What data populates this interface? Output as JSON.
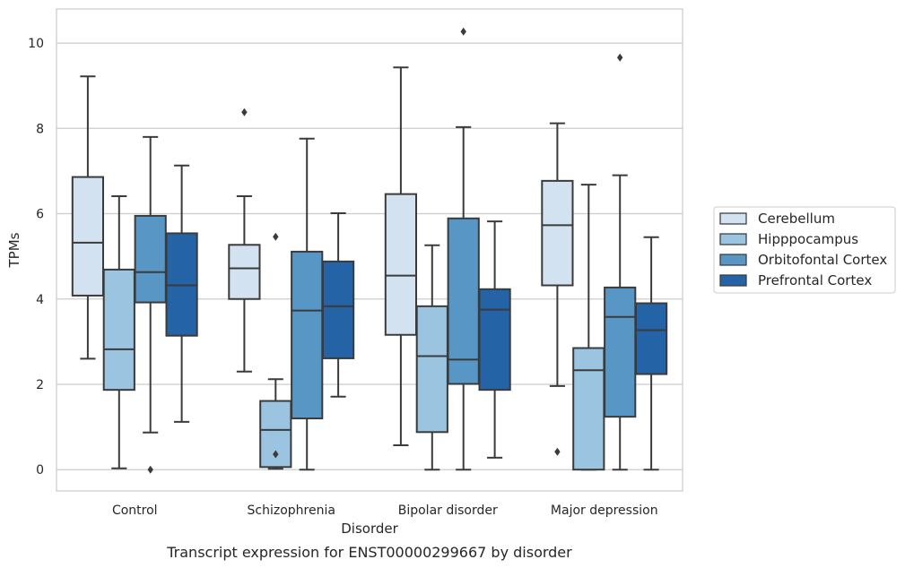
{
  "chart_data": {
    "type": "box",
    "caption": "Transcript expression for ENST00000299667 by disorder",
    "xlabel": "Disorder",
    "ylabel": "TPMs",
    "ylim": [
      -0.5,
      10.8
    ],
    "yticks": [
      0,
      2,
      4,
      6,
      8,
      10
    ],
    "grid": "horizontal",
    "legend_position": "right",
    "categories": [
      "Control",
      "Schizophrenia",
      "Bipolar disorder",
      "Major depression"
    ],
    "series": [
      {
        "name": "Cerebellum",
        "color": "#d2e2f1",
        "boxes": [
          {
            "whislo": 2.6,
            "q1": 4.08,
            "med": 5.32,
            "q3": 6.86,
            "whishi": 9.22,
            "fliers": []
          },
          {
            "whislo": 2.3,
            "q1": 4.0,
            "med": 4.72,
            "q3": 5.27,
            "whishi": 6.41,
            "fliers": [
              8.38
            ]
          },
          {
            "whislo": 0.57,
            "q1": 3.16,
            "med": 4.55,
            "q3": 6.46,
            "whishi": 9.43,
            "fliers": []
          },
          {
            "whislo": 1.96,
            "q1": 4.32,
            "med": 5.73,
            "q3": 6.77,
            "whishi": 8.12,
            "fliers": [
              0.42
            ]
          }
        ]
      },
      {
        "name": "Hipppocampus",
        "color": "#9ac4df",
        "boxes": [
          {
            "whislo": 0.03,
            "q1": 1.87,
            "med": 2.82,
            "q3": 4.69,
            "whishi": 6.41,
            "fliers": []
          },
          {
            "whislo": 0.02,
            "q1": 0.06,
            "med": 0.93,
            "q3": 1.61,
            "whishi": 2.12,
            "fliers": [
              0.36,
              5.46
            ]
          },
          {
            "whislo": 0.0,
            "q1": 0.88,
            "med": 2.66,
            "q3": 3.83,
            "whishi": 5.26,
            "fliers": []
          },
          {
            "whislo": 0.0,
            "q1": 0.0,
            "med": 2.33,
            "q3": 2.85,
            "whishi": 6.68,
            "fliers": []
          }
        ]
      },
      {
        "name": "Orbitofontal Cortex",
        "color": "#5796c5",
        "boxes": [
          {
            "whislo": 0.87,
            "q1": 3.92,
            "med": 4.63,
            "q3": 5.95,
            "whishi": 7.8,
            "fliers": [
              0.0
            ]
          },
          {
            "whislo": 0.0,
            "q1": 1.2,
            "med": 3.73,
            "q3": 5.11,
            "whishi": 7.76,
            "fliers": []
          },
          {
            "whislo": 0.0,
            "q1": 2.01,
            "med": 2.58,
            "q3": 5.89,
            "whishi": 8.03,
            "fliers": [
              10.27
            ]
          },
          {
            "whislo": 0.0,
            "q1": 1.24,
            "med": 3.58,
            "q3": 4.27,
            "whishi": 6.9,
            "fliers": [
              9.66
            ]
          }
        ]
      },
      {
        "name": "Prefrontal Cortex",
        "color": "#2463a6",
        "boxes": [
          {
            "whislo": 1.12,
            "q1": 3.14,
            "med": 4.32,
            "q3": 5.54,
            "whishi": 7.13,
            "fliers": []
          },
          {
            "whislo": 1.71,
            "q1": 2.61,
            "med": 3.83,
            "q3": 4.88,
            "whishi": 6.01,
            "fliers": []
          },
          {
            "whislo": 0.28,
            "q1": 1.87,
            "med": 3.75,
            "q3": 4.23,
            "whishi": 5.82,
            "fliers": []
          },
          {
            "whislo": 0.0,
            "q1": 2.24,
            "med": 3.27,
            "q3": 3.9,
            "whishi": 5.45,
            "fliers": []
          }
        ]
      }
    ]
  }
}
